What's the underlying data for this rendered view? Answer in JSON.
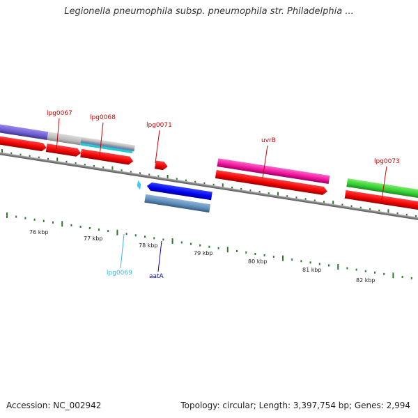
{
  "title": "Legionella pneumophila subsp. pneumophila str. Philadelphia ...",
  "footer": {
    "accession": "Accession: NC_002942",
    "summary": "Topology: circular; Length: 3,397,754 bp; Genes: 2,994"
  },
  "colors": {
    "backbone": "#7f7f7f",
    "tick": "#2b7a2b",
    "label_red": "#cc0000",
    "label_cyan": "#33bbdd",
    "label_blue": "#0000aa"
  },
  "scale": {
    "labels": [
      "76 kbp",
      "77 kbp",
      "78 kbp",
      "79 kbp",
      "80 kbp",
      "81 kbp",
      "82 kbp"
    ]
  },
  "genes": [
    {
      "label": "lpg0067",
      "label_color": "#cc0000"
    },
    {
      "label": "lpg0068",
      "label_color": "#cc0000"
    },
    {
      "label": "lpg0071",
      "label_color": "#cc0000"
    },
    {
      "label": "uvrB",
      "label_color": "#cc0000"
    },
    {
      "label": "lpg0073",
      "label_color": "#cc0000"
    },
    {
      "label": "lpg0069",
      "label_color": "#33bbdd"
    },
    {
      "label": "aatA",
      "label_color": "#0000aa"
    }
  ]
}
